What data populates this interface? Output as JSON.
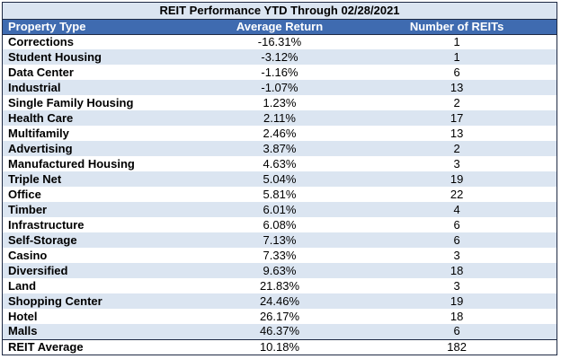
{
  "chart_data": {
    "type": "table",
    "title": "REIT Performance YTD Through 02/28/2021",
    "columns": [
      "Property Type",
      "Average Return",
      "Number of REITs"
    ],
    "rows": [
      {
        "type": "Corrections",
        "return": "-16.31%",
        "count": "1"
      },
      {
        "type": "Student Housing",
        "return": "-3.12%",
        "count": "1"
      },
      {
        "type": "Data Center",
        "return": "-1.16%",
        "count": "6"
      },
      {
        "type": "Industrial",
        "return": "-1.07%",
        "count": "13"
      },
      {
        "type": "Single Family Housing",
        "return": "1.23%",
        "count": "2"
      },
      {
        "type": "Health Care",
        "return": "2.11%",
        "count": "17"
      },
      {
        "type": "Multifamily",
        "return": "2.46%",
        "count": "13"
      },
      {
        "type": "Advertising",
        "return": "3.87%",
        "count": "2"
      },
      {
        "type": "Manufactured Housing",
        "return": "4.63%",
        "count": "3"
      },
      {
        "type": "Triple Net",
        "return": "5.04%",
        "count": "19"
      },
      {
        "type": "Office",
        "return": "5.81%",
        "count": "22"
      },
      {
        "type": "Timber",
        "return": "6.01%",
        "count": "4"
      },
      {
        "type": "Infrastructure",
        "return": "6.08%",
        "count": "6"
      },
      {
        "type": "Self-Storage",
        "return": "7.13%",
        "count": "6"
      },
      {
        "type": "Casino",
        "return": "7.33%",
        "count": "3"
      },
      {
        "type": "Diversified",
        "return": "9.63%",
        "count": "18"
      },
      {
        "type": "Land",
        "return": "21.83%",
        "count": "3"
      },
      {
        "type": "Shopping Center",
        "return": "24.46%",
        "count": "19"
      },
      {
        "type": "Hotel",
        "return": "26.17%",
        "count": "18"
      },
      {
        "type": "Malls",
        "return": "46.37%",
        "count": "6"
      }
    ],
    "footer": {
      "type": "REIT Average",
      "return": "10.18%",
      "count": "182"
    }
  },
  "colors": {
    "header_bg": "#3f6bb0",
    "stripe_bg": "#dbe5f1",
    "border": "#1f2a44"
  }
}
